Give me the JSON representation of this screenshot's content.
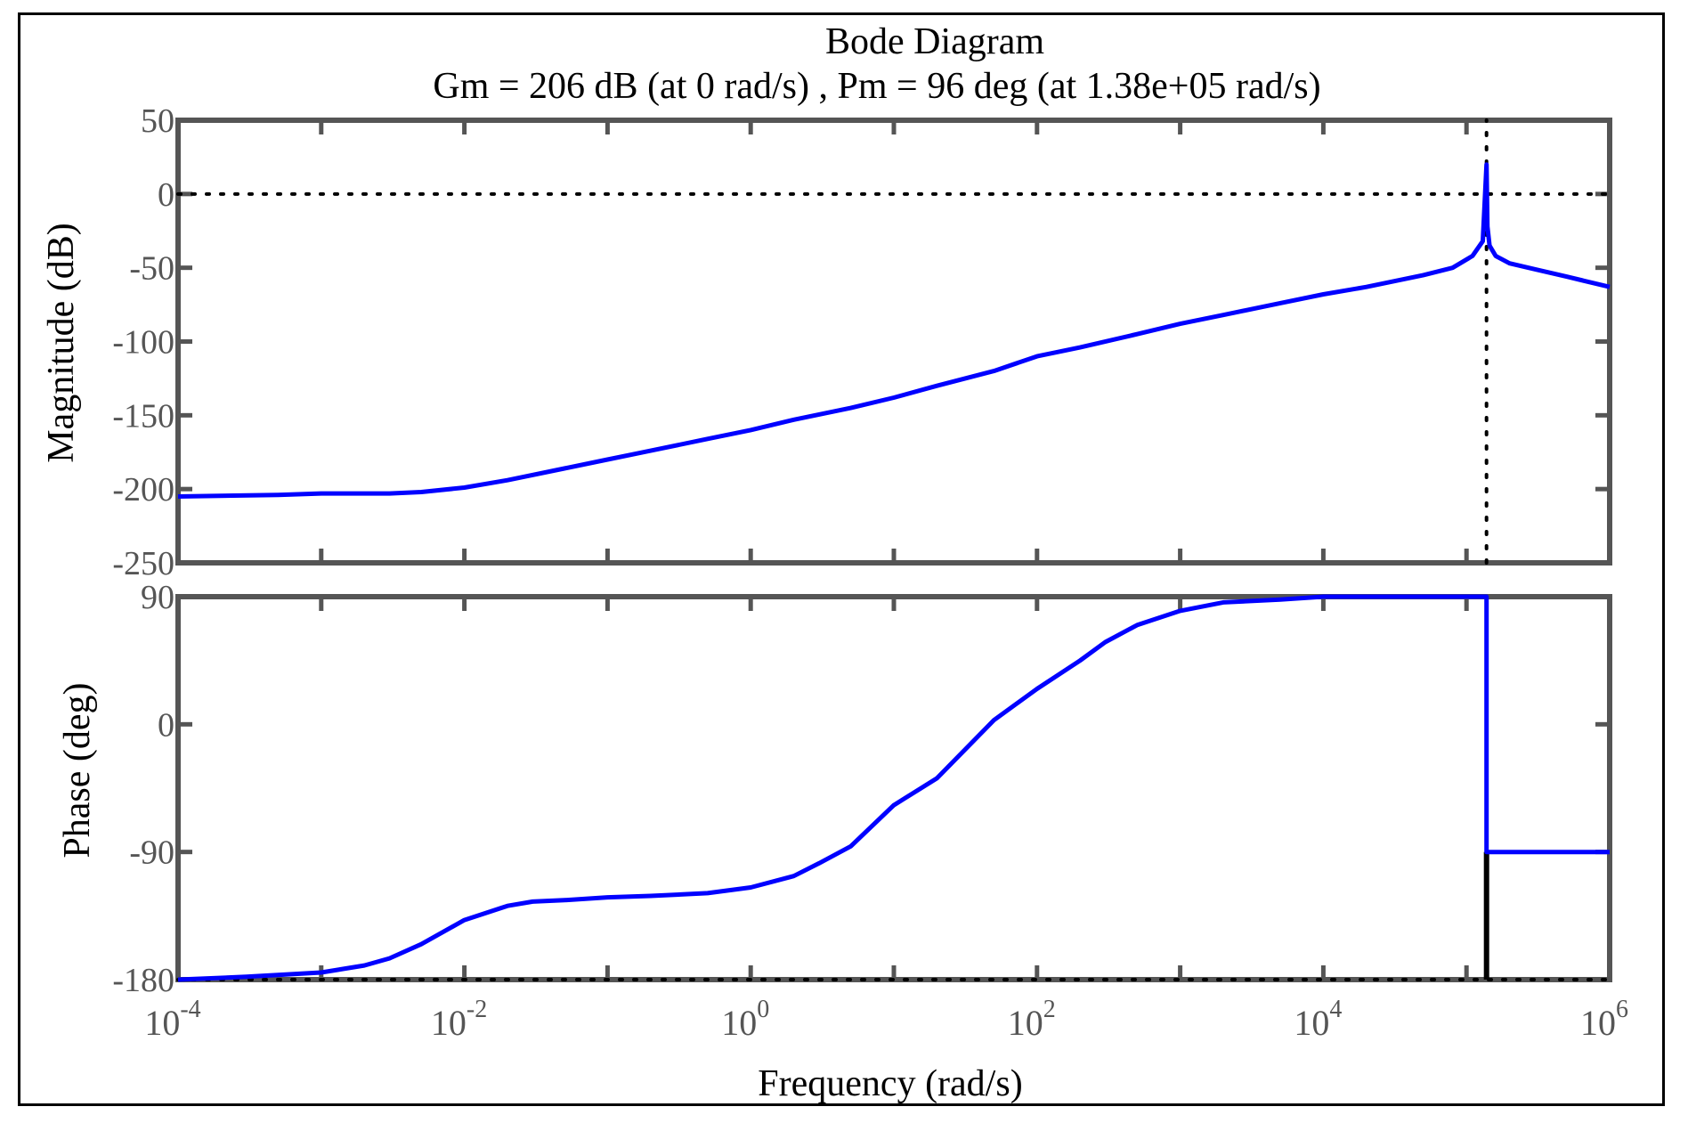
{
  "chart_data": [
    {
      "type": "line",
      "panel": "magnitude",
      "title": "Bode Diagram",
      "subtitle": "Gm = 206 dB (at 0 rad/s) ,  Pm = 96 deg (at 1.38e+05 rad/s)",
      "xlabel": "Frequency  (rad/s)",
      "ylabel": "Magnitude (dB)",
      "xscale": "log",
      "xlim": [
        0.0001,
        1000000
      ],
      "ylim": [
        -250,
        50
      ],
      "yticks": [
        "50",
        "0",
        "-50",
        "-100",
        "-150",
        "-200",
        "-250"
      ],
      "grid": false,
      "reference_lines": [
        {
          "orientation": "horizontal",
          "y": 0,
          "style": "dotted"
        },
        {
          "orientation": "vertical",
          "x": 138000,
          "style": "dotted"
        }
      ],
      "series": [
        {
          "color": "#0000ff",
          "x": [
            0.0001,
            0.0005,
            0.001,
            0.003,
            0.005,
            0.01,
            0.02,
            0.05,
            0.1,
            0.2,
            0.5,
            1,
            2,
            5,
            10,
            20,
            50,
            100,
            200,
            500,
            1000,
            2000,
            5000,
            10000,
            20000,
            50000,
            80000,
            110000,
            130000,
            138000,
            140000,
            145000,
            160000,
            200000,
            300000,
            500000,
            1000000
          ],
          "y": [
            -205,
            -204,
            -203,
            -203,
            -202,
            -199,
            -194,
            -186,
            -180,
            -174,
            -166,
            -160,
            -153,
            -145,
            -138,
            -130,
            -120,
            -110,
            -104,
            -95,
            -88,
            -82,
            -74,
            -68,
            -63,
            -55,
            -50,
            -42,
            -32,
            20,
            -22,
            -35,
            -42,
            -47,
            -51,
            -56,
            -63
          ]
        }
      ]
    },
    {
      "type": "line",
      "panel": "phase",
      "xlabel": "Frequency  (rad/s)",
      "ylabel": "Phase (deg)",
      "xscale": "log",
      "xlim": [
        0.0001,
        1000000
      ],
      "ylim": [
        -180,
        90
      ],
      "yticks": [
        "90",
        "0",
        "-90",
        "-180"
      ],
      "xticks": [
        {
          "base": "10",
          "exp": "-4"
        },
        {
          "base": "10",
          "exp": "-2"
        },
        {
          "base": "10",
          "exp": "0"
        },
        {
          "base": "10",
          "exp": "2"
        },
        {
          "base": "10",
          "exp": "4"
        },
        {
          "base": "10",
          "exp": "6"
        }
      ],
      "grid": false,
      "reference_lines": [
        {
          "orientation": "horizontal",
          "y": -180,
          "style": "dotted"
        },
        {
          "orientation": "vertical",
          "x": 138000,
          "y_range": [
            -180,
            -90
          ],
          "style": "solid"
        }
      ],
      "series": [
        {
          "color": "#0000ff",
          "x": [
            0.0001,
            0.0003,
            0.001,
            0.002,
            0.003,
            0.005,
            0.01,
            0.02,
            0.03,
            0.05,
            0.1,
            0.2,
            0.5,
            1,
            2,
            3,
            5,
            10,
            20,
            50,
            100,
            200,
            300,
            500,
            1000,
            2000,
            5000,
            10000,
            50000,
            100000,
            138000,
            138000,
            1000000
          ],
          "y": [
            -180,
            -178,
            -175,
            -170,
            -165,
            -155,
            -138,
            -128,
            -125,
            -124,
            -122,
            -121,
            -119,
            -115,
            -107,
            -98,
            -86,
            -57,
            -38,
            3,
            25,
            45,
            58,
            70,
            80,
            86,
            88,
            90,
            90,
            90,
            90,
            -90,
            -90
          ]
        }
      ]
    }
  ]
}
